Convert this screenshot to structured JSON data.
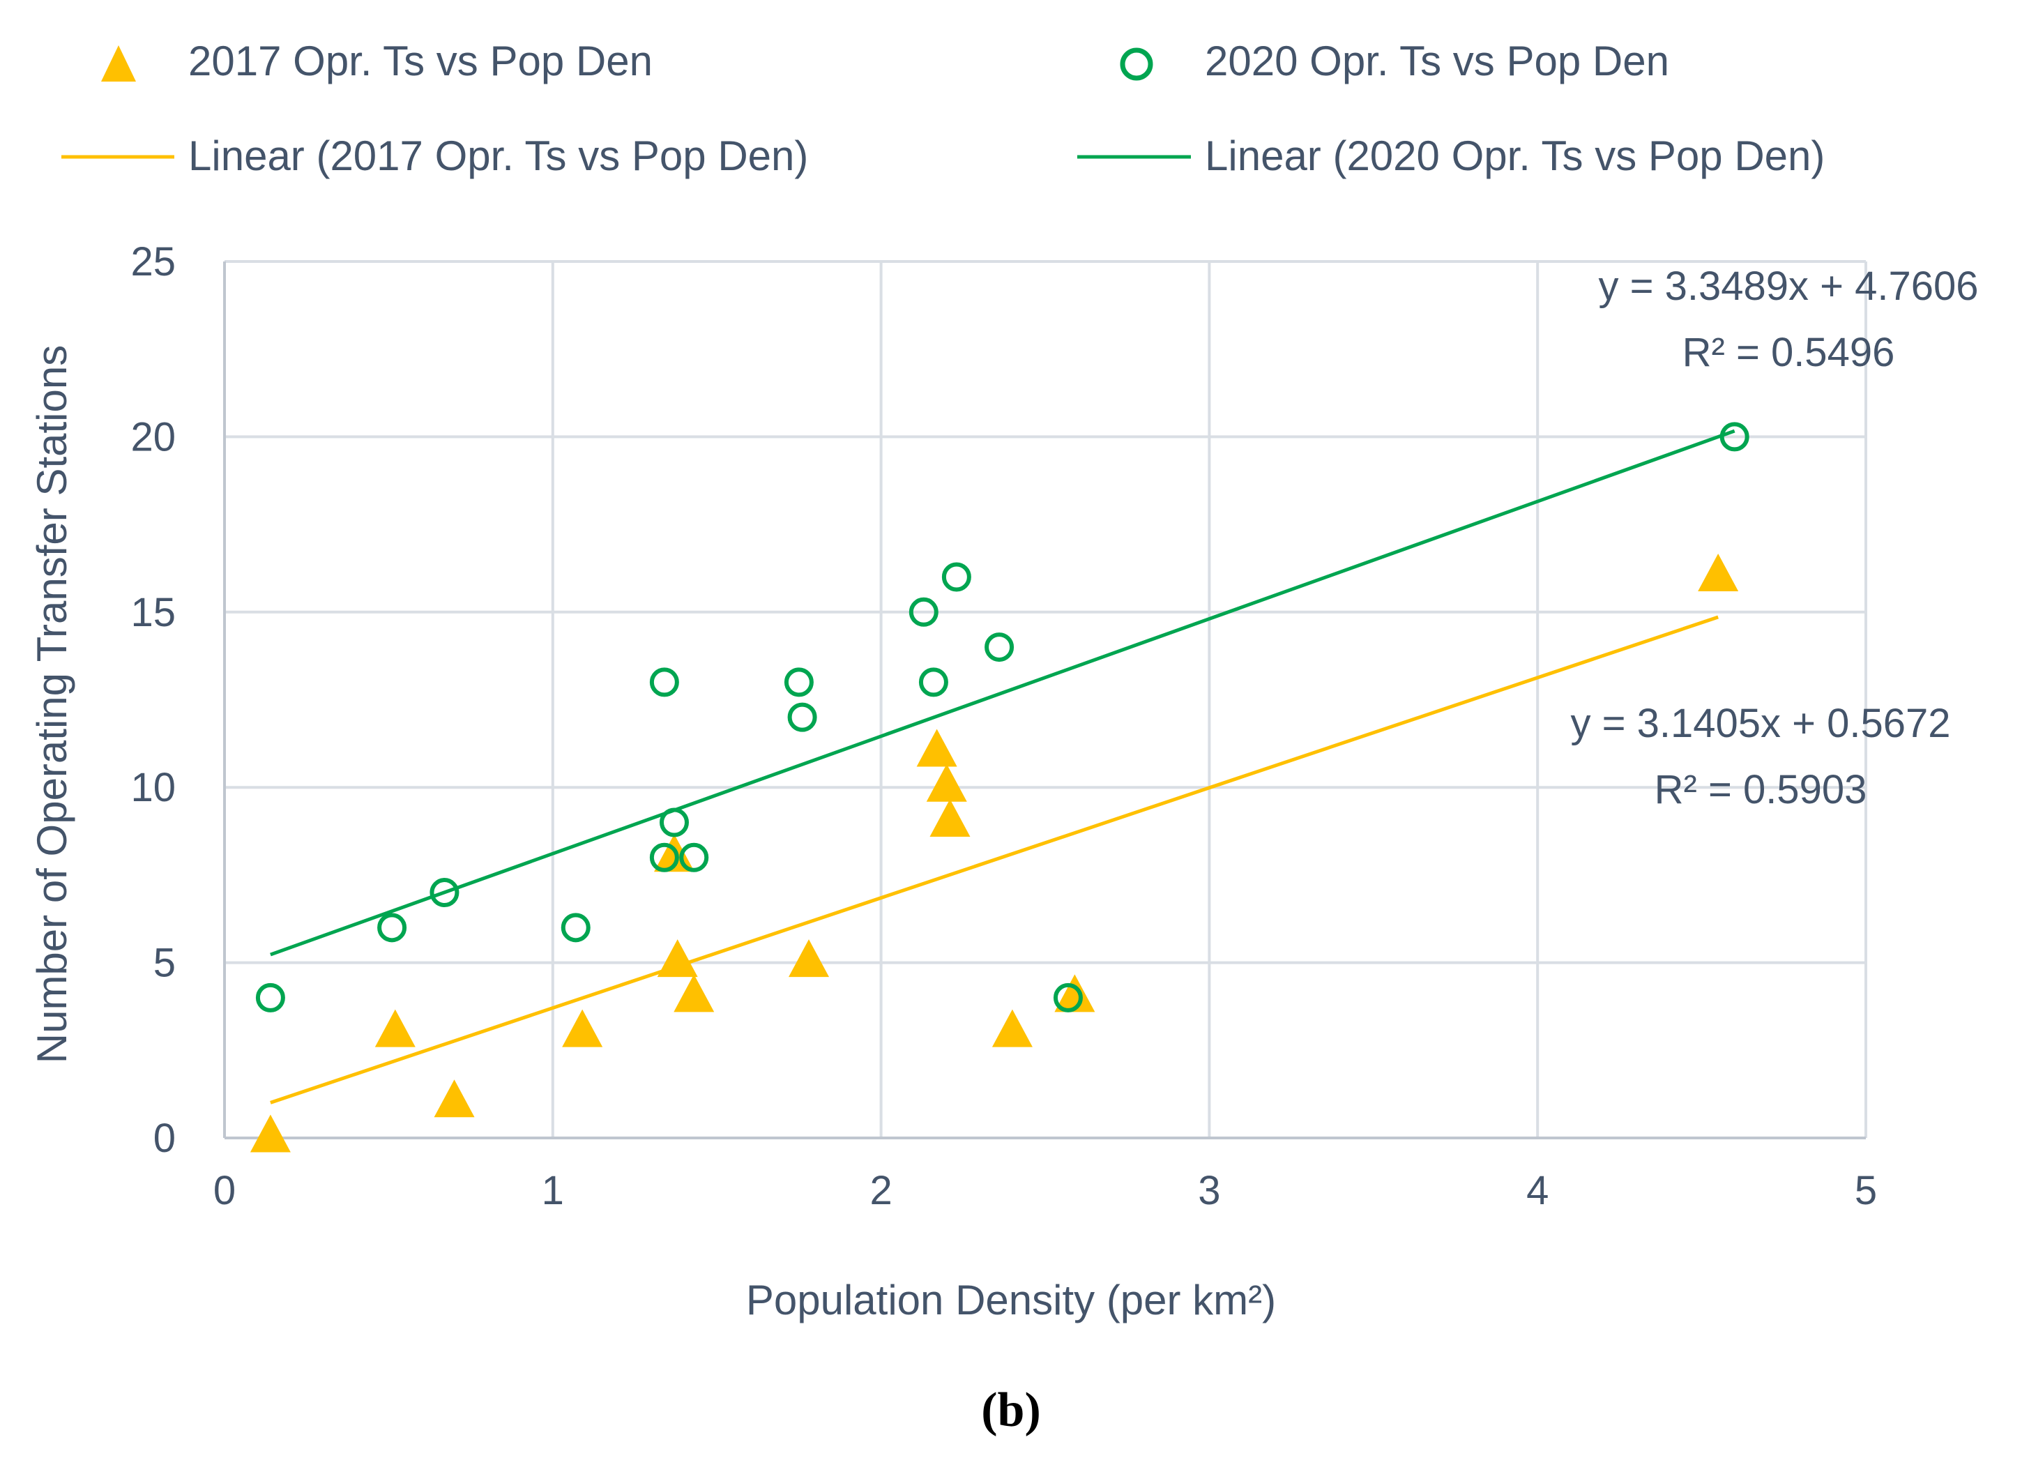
{
  "chart_data": {
    "type": "scatter",
    "title": "",
    "xlabel": "Population Density (per km²)",
    "ylabel": "Number of Operating Transfer Stations",
    "xlim": [
      0,
      5
    ],
    "ylim": [
      0,
      25
    ],
    "x_ticks": [
      0,
      1,
      2,
      3,
      4,
      5
    ],
    "y_ticks": [
      0,
      5,
      10,
      15,
      20,
      25
    ],
    "x_tick_labels": [
      "0",
      "1",
      "2",
      "3",
      "4",
      "5"
    ],
    "y_tick_labels": [
      "0",
      "5",
      "10",
      "15",
      "20",
      "25"
    ],
    "grid": true,
    "legend_position": "top",
    "series": [
      {
        "name": "2017 Opr. Ts vs Pop Den",
        "marker": "triangle",
        "color": "#FFC000",
        "x": [
          0.14,
          0.52,
          0.7,
          1.09,
          1.37,
          1.38,
          1.43,
          1.78,
          2.17,
          2.2,
          2.21,
          2.4,
          2.59,
          4.55
        ],
        "y": [
          0,
          3,
          1,
          3,
          8,
          5,
          4,
          5,
          11,
          10,
          9,
          3,
          4,
          16
        ]
      },
      {
        "name": "2020 Opr. Ts vs Pop Den",
        "marker": "circle",
        "color": "#00A550",
        "x": [
          0.14,
          0.51,
          0.67,
          1.07,
          1.34,
          1.34,
          1.37,
          1.43,
          1.75,
          1.76,
          2.13,
          2.16,
          2.23,
          2.36,
          2.57,
          4.6
        ],
        "y": [
          4,
          6,
          7,
          6,
          13,
          8,
          9,
          8,
          13,
          12,
          15,
          13,
          16,
          14,
          4,
          20
        ]
      }
    ],
    "trendlines": [
      {
        "name": "Linear (2017 Opr. Ts vs Pop Den)",
        "color": "#FFC000",
        "slope": 3.1405,
        "intercept": 0.5672,
        "x_range": [
          0.14,
          4.55
        ],
        "equation": "y = 3.1405x + 0.5672",
        "r2": "R² = 0.5903"
      },
      {
        "name": "Linear (2020 Opr. Ts vs Pop Den)",
        "color": "#00A550",
        "slope": 3.3489,
        "intercept": 4.7606,
        "x_range": [
          0.14,
          4.6
        ],
        "equation": "y = 3.3489x + 4.7606",
        "r2": "R² = 0.5496"
      }
    ],
    "caption": "(b)"
  }
}
